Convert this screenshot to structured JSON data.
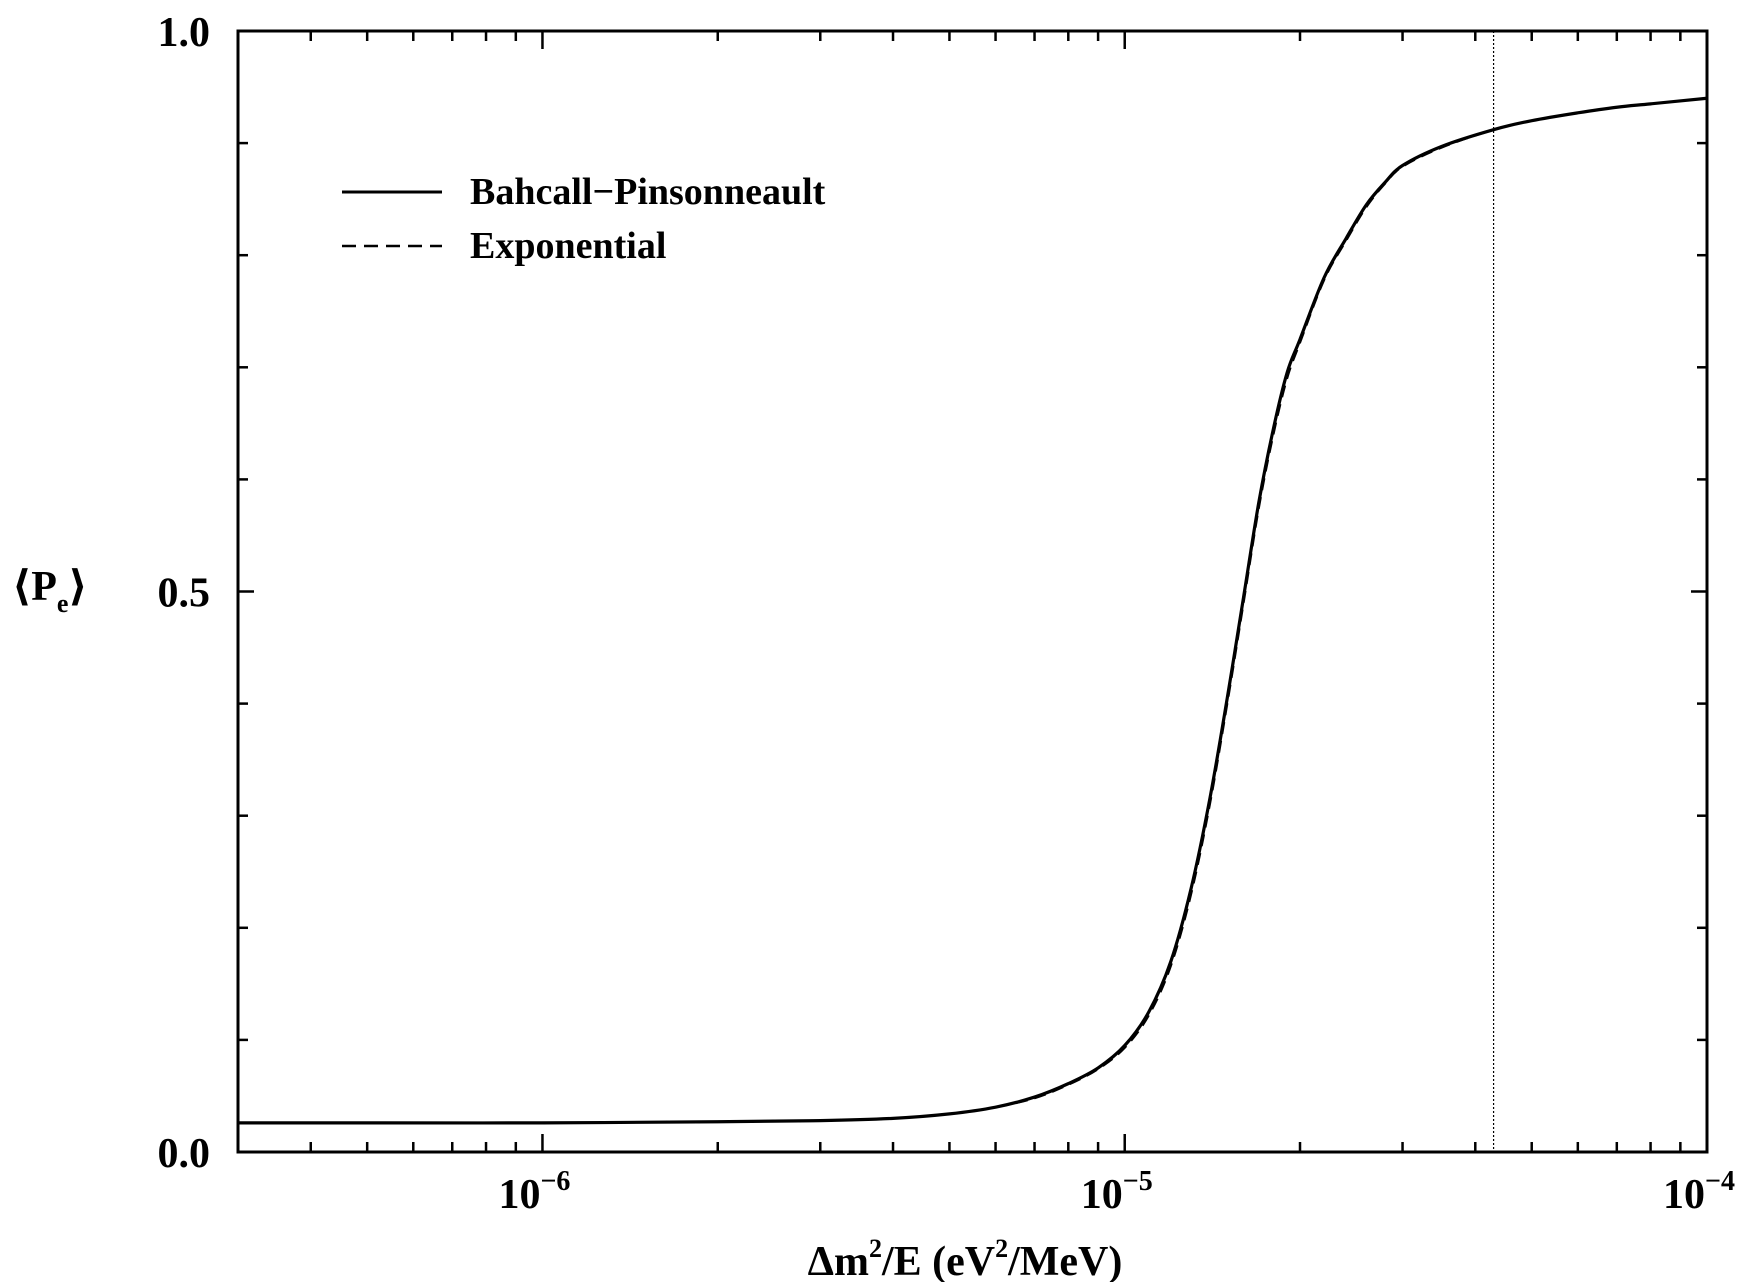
{
  "chart_data": {
    "type": "line",
    "xscale": "log",
    "xlabel": {
      "delta": "Δ",
      "m": "m",
      "sup1": "2",
      "mid": "/E (eV",
      "sup2": "2",
      "end": "/MeV)"
    },
    "ylabel": {
      "open": "⟨",
      "main": "P",
      "sub": "e",
      "close": "⟩"
    },
    "xlim": [
      3e-07,
      0.0001
    ],
    "ylim": [
      0.0,
      1.0
    ],
    "x_tick_labels": [
      {
        "value": 1e-06,
        "base": "10",
        "exp": "−6"
      },
      {
        "value": 1e-05,
        "base": "10",
        "exp": "−5"
      },
      {
        "value": 0.0001,
        "base": "10",
        "exp": "−4"
      }
    ],
    "y_tick_labels": [
      {
        "value": 0.0,
        "text": "0.0"
      },
      {
        "value": 0.5,
        "text": "0.5"
      },
      {
        "value": 1.0,
        "text": "1.0"
      }
    ],
    "vline_x": 4.3e-05,
    "legend": {
      "placement": "top-left"
    },
    "series": [
      {
        "name": "Bahcall−Pinsonneault",
        "style": "solid",
        "x": [
          3e-07,
          5e-07,
          1e-06,
          2e-06,
          3e-06,
          4e-06,
          5e-06,
          6e-06,
          7e-06,
          8e-06,
          9e-06,
          1e-05,
          1.1e-05,
          1.2e-05,
          1.3e-05,
          1.4e-05,
          1.5e-05,
          1.6e-05,
          1.7e-05,
          1.8e-05,
          1.9e-05,
          2e-05,
          2.2e-05,
          2.4e-05,
          2.6e-05,
          2.8e-05,
          3e-05,
          3.5e-05,
          4.3e-05,
          5e-05,
          6e-05,
          7e-05,
          8e-05,
          0.0001
        ],
        "y": [
          0.026,
          0.026,
          0.026,
          0.027,
          0.028,
          0.03,
          0.034,
          0.04,
          0.049,
          0.061,
          0.075,
          0.095,
          0.125,
          0.17,
          0.235,
          0.315,
          0.405,
          0.495,
          0.58,
          0.645,
          0.695,
          0.725,
          0.78,
          0.815,
          0.845,
          0.865,
          0.88,
          0.897,
          0.912,
          0.92,
          0.927,
          0.932,
          0.935,
          0.94
        ]
      },
      {
        "name": "Exponential",
        "style": "dashed",
        "x": [
          3e-07,
          5e-07,
          1e-06,
          2e-06,
          3e-06,
          4e-06,
          5e-06,
          6e-06,
          7e-06,
          8e-06,
          9e-06,
          1e-05,
          1.1e-05,
          1.2e-05,
          1.3e-05,
          1.4e-05,
          1.5e-05,
          1.6e-05,
          1.7e-05,
          1.8e-05,
          1.9e-05,
          2e-05,
          2.2e-05,
          2.4e-05,
          2.6e-05,
          2.8e-05,
          3e-05,
          3.5e-05,
          4.3e-05,
          5e-05,
          6e-05,
          7e-05,
          8e-05,
          0.0001
        ],
        "y": [
          0.026,
          0.026,
          0.026,
          0.027,
          0.028,
          0.03,
          0.034,
          0.04,
          0.048,
          0.06,
          0.074,
          0.093,
          0.122,
          0.166,
          0.23,
          0.31,
          0.4,
          0.49,
          0.575,
          0.64,
          0.69,
          0.722,
          0.778,
          0.813,
          0.843,
          0.864,
          0.879,
          0.896,
          0.912,
          0.92,
          0.927,
          0.932,
          0.935,
          0.94
        ]
      }
    ]
  }
}
